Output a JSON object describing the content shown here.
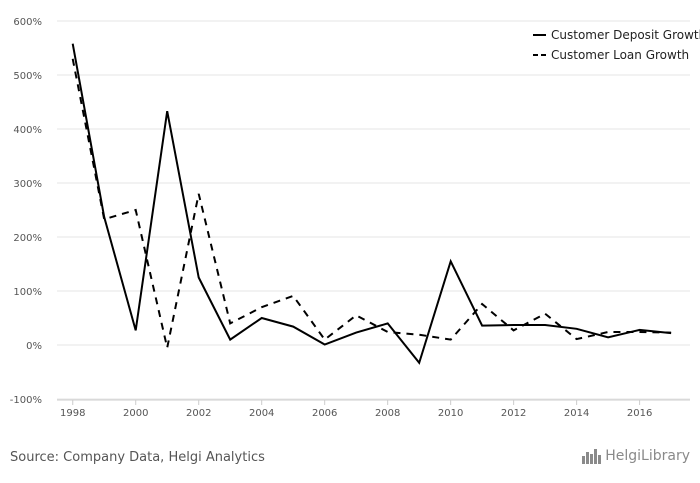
{
  "chart_data": {
    "type": "line",
    "title": "",
    "xlabel": "",
    "ylabel": "",
    "x": [
      1998,
      1999,
      2000,
      2001,
      2002,
      2003,
      2004,
      2005,
      2006,
      2007,
      2008,
      2009,
      2010,
      2011,
      2012,
      2013,
      2014,
      2015,
      2016,
      2017
    ],
    "xticks": [
      1998,
      2000,
      2002,
      2004,
      2006,
      2008,
      2010,
      2012,
      2014,
      2016
    ],
    "xtick_labels": [
      "1998",
      "2000",
      "2002",
      "2004",
      "2006",
      "2008",
      "2010",
      "2012",
      "2014",
      "2016"
    ],
    "ylim": [
      -100,
      600
    ],
    "yticks": [
      -100,
      0,
      100,
      200,
      300,
      400,
      500,
      600
    ],
    "ytick_labels": [
      "-100%",
      "0%",
      "100%",
      "200%",
      "300%",
      "400%",
      "500%",
      "600%"
    ],
    "grid": true,
    "legend_position": "top-right",
    "series": [
      {
        "name": "Customer Deposit Growth",
        "style": "solid",
        "color": "#000000",
        "values": [
          558,
          237,
          27,
          433,
          125,
          10,
          50,
          34,
          1,
          23,
          40,
          -33,
          155,
          36,
          37,
          37,
          30,
          14,
          28,
          22
        ]
      },
      {
        "name": "Customer Loan Growth",
        "style": "dashed",
        "color": "#000000",
        "values": [
          530,
          233,
          250,
          -5,
          280,
          40,
          70,
          91,
          10,
          55,
          24,
          19,
          10,
          76,
          27,
          58,
          11,
          24,
          24,
          23
        ]
      }
    ]
  },
  "footer": {
    "source": "Source: Company Data, Helgi Analytics",
    "brand": "HelgiLibrary"
  }
}
